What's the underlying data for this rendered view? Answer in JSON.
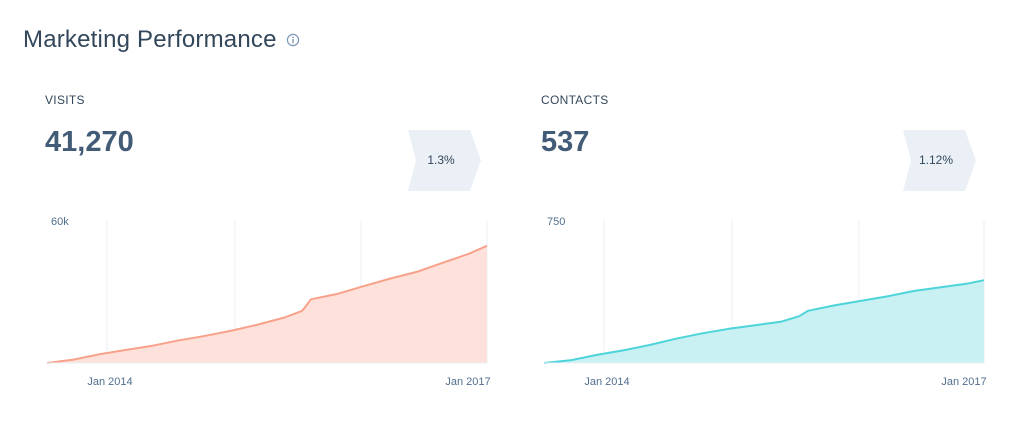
{
  "header": {
    "title": "Marketing Performance",
    "info_icon": "info-circle-icon"
  },
  "colors": {
    "visits_line": "#f8a18a",
    "visits_fill": "#fee1da",
    "contacts_line": "#4dd4d9",
    "contacts_fill": "#c9f1f3",
    "grid": "#eaf0f6",
    "badge": "#eaf0f6"
  },
  "widgets": [
    {
      "label": "VISITS",
      "value": "41,270",
      "change": "1.3%",
      "chart_data": {
        "type": "area",
        "x": [
          "2013-01",
          "2013-04",
          "2013-07",
          "2013-10",
          "2014-01",
          "2014-04",
          "2014-07",
          "2014-10",
          "2015-01",
          "2015-04",
          "2015-06",
          "2015-07",
          "2015-10",
          "2016-01",
          "2016-04",
          "2016-07",
          "2016-10",
          "2017-01",
          "2017-03"
        ],
        "values": [
          0,
          1500,
          3900,
          5800,
          7700,
          10100,
          12100,
          14400,
          17100,
          20200,
          23200,
          28300,
          30700,
          34200,
          37500,
          40500,
          44600,
          48600,
          52100
        ],
        "ylim": [
          0,
          60000
        ],
        "yticks": [
          "60k"
        ],
        "xticks": [
          "Jan 2014",
          "Jan 2017"
        ],
        "grid": true
      }
    },
    {
      "label": "CONTACTS",
      "value": "537",
      "change": "1.12%",
      "chart_data": {
        "type": "area",
        "x": [
          "2013-01",
          "2013-04",
          "2013-07",
          "2013-10",
          "2014-01",
          "2014-04",
          "2014-07",
          "2014-10",
          "2015-01",
          "2015-04",
          "2015-06",
          "2015-07",
          "2015-10",
          "2016-01",
          "2016-04",
          "2016-07",
          "2016-10",
          "2017-01",
          "2017-03"
        ],
        "values": [
          0,
          15,
          45,
          70,
          100,
          135,
          165,
          190,
          210,
          230,
          260,
          290,
          320,
          345,
          370,
          400,
          420,
          440,
          460
        ],
        "ylim": [
          0,
          750
        ],
        "yticks": [
          "750"
        ],
        "xticks": [
          "Jan 2014",
          "Jan 2017"
        ],
        "grid": true
      }
    }
  ]
}
